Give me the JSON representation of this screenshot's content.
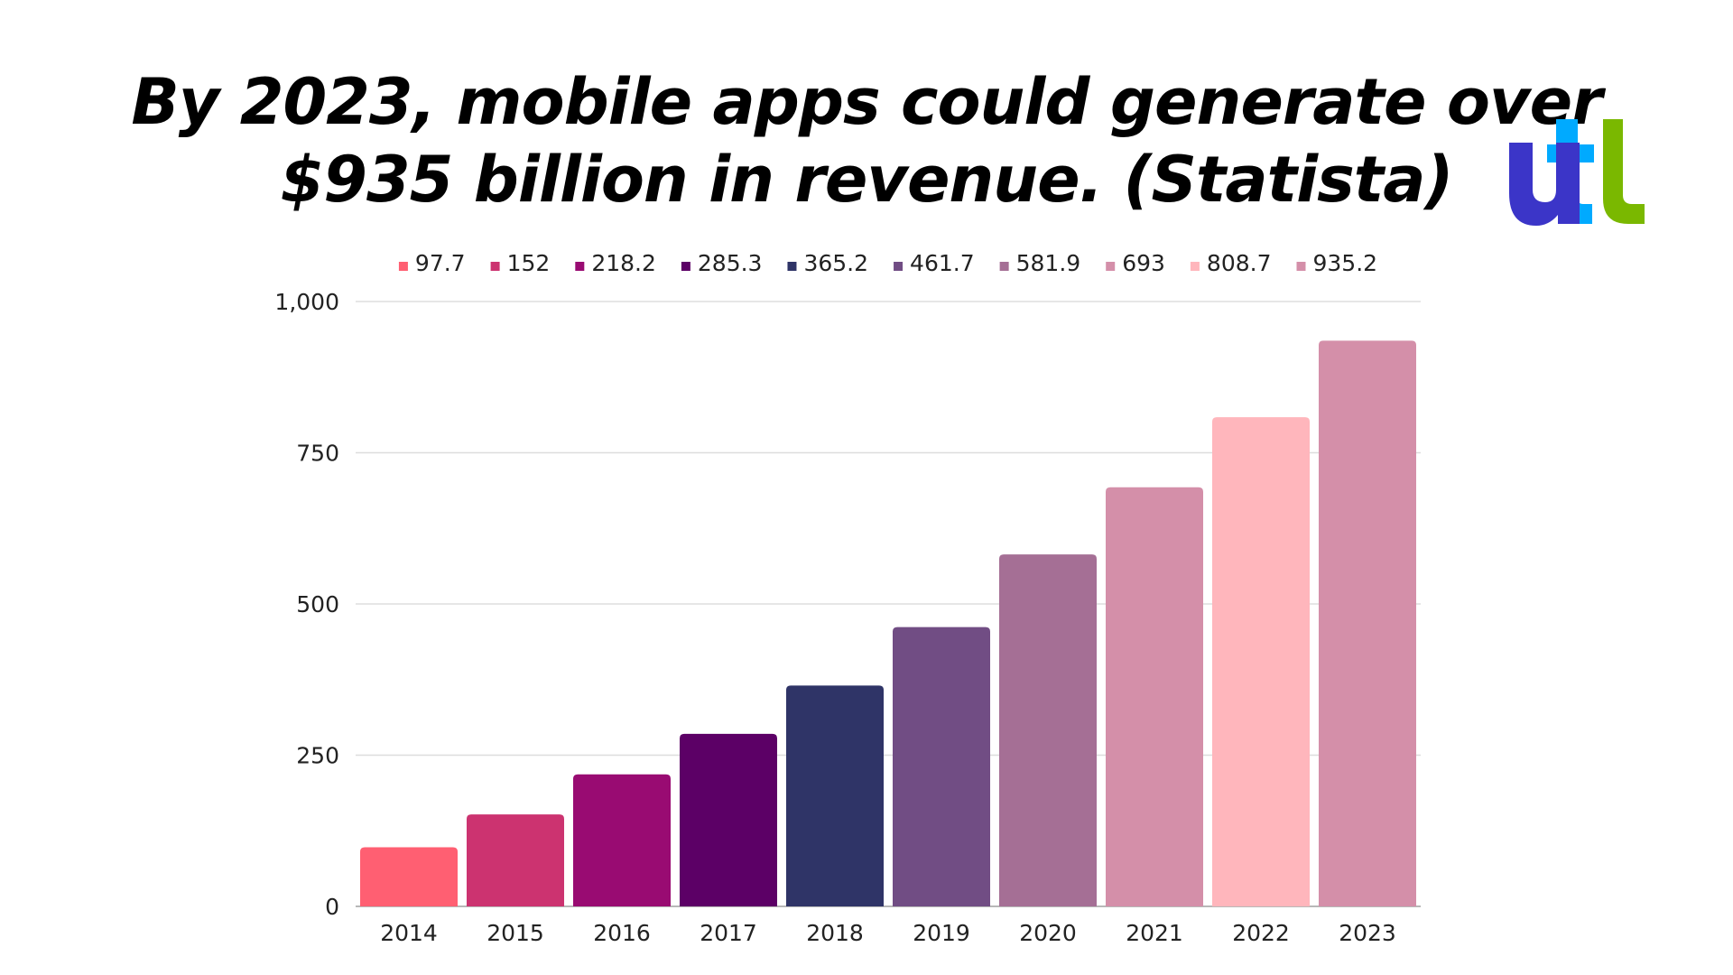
{
  "title": {
    "line1": "By 2023, mobile apps could generate over",
    "line2": "$935 billion in revenue. (Statista)"
  },
  "logo": {
    "icon": "utl-logo",
    "text": "utl",
    "colors": [
      "#3b35c8",
      "#00aaff",
      "#7ab800"
    ]
  },
  "chart_data": {
    "type": "bar",
    "categories": [
      "2014",
      "2015",
      "2016",
      "2017",
      "2018",
      "2019",
      "2020",
      "2021",
      "2022",
      "2023"
    ],
    "values": [
      97.7,
      152,
      218.2,
      285.3,
      365.2,
      461.7,
      581.9,
      693,
      808.7,
      935.2
    ],
    "legend": [
      "97.7",
      "152",
      "218.2",
      "285.3",
      "365.2",
      "461.7",
      "581.9",
      "693",
      "808.7",
      "935.2"
    ],
    "colors": [
      "#ff5f72",
      "#cc3370",
      "#990b72",
      "#5c0066",
      "#2f3467",
      "#714d84",
      "#a56f95",
      "#d48fa9",
      "#ffb6bc",
      "#d48fa9"
    ],
    "yticks": [
      0,
      250,
      500,
      750,
      1000
    ],
    "ytick_labels": [
      "0",
      "250",
      "500",
      "750",
      "1,000"
    ],
    "ylim": [
      0,
      1000
    ],
    "grid": true,
    "legend_position": "top",
    "title": "",
    "xlabel": "",
    "ylabel": ""
  }
}
